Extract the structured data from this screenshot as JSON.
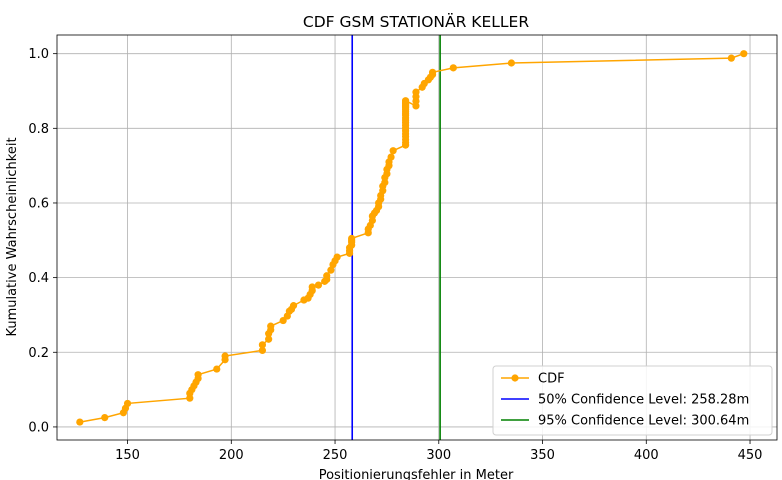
{
  "chart_data": {
    "type": "line",
    "title": "CDF GSM STATIONÄR KELLER",
    "xlabel": "Positionierungsfehler in Meter",
    "ylabel": "Kumulative Wahrscheinlichkeit",
    "xlim": [
      116,
      463
    ],
    "ylim": [
      -0.035,
      1.05
    ],
    "xticks": [
      150,
      200,
      250,
      300,
      350,
      400,
      450
    ],
    "yticks": [
      0.0,
      0.2,
      0.4,
      0.6,
      0.8,
      1.0
    ],
    "ytick_labels": [
      "0.0",
      "0.2",
      "0.4",
      "0.6",
      "0.8",
      "1.0"
    ],
    "grid": true,
    "legend_position": "lower-right",
    "series": [
      {
        "name": "CDF",
        "color": "#ffa500",
        "marker": "circle",
        "x": [
          127,
          139,
          148,
          149,
          150,
          180,
          180,
          181,
          182,
          183,
          184,
          184,
          193,
          197,
          197,
          215,
          215,
          218,
          218,
          219,
          219,
          225,
          227,
          228,
          229,
          230,
          235,
          237,
          238,
          239,
          239,
          242,
          245,
          246,
          246,
          248,
          249,
          250,
          251,
          257,
          257,
          257,
          258,
          258,
          258,
          258,
          266,
          266,
          267,
          268,
          268,
          269,
          270,
          271,
          271,
          272,
          272,
          273,
          273,
          274,
          274,
          275,
          275,
          276,
          276,
          277,
          278,
          284,
          284,
          284,
          284,
          284,
          284,
          284,
          284,
          284,
          284,
          284,
          284,
          284,
          284,
          284,
          284,
          284,
          284,
          284,
          284,
          284,
          289,
          289,
          289,
          289,
          292,
          293,
          295,
          296,
          297,
          297,
          307,
          335,
          441,
          447
        ],
        "y": [
          0.013,
          0.025,
          0.038,
          0.05,
          0.063,
          0.077,
          0.09,
          0.1,
          0.11,
          0.12,
          0.13,
          0.14,
          0.155,
          0.18,
          0.19,
          0.205,
          0.22,
          0.235,
          0.25,
          0.26,
          0.27,
          0.285,
          0.297,
          0.31,
          0.315,
          0.325,
          0.34,
          0.345,
          0.355,
          0.365,
          0.375,
          0.38,
          0.39,
          0.395,
          0.405,
          0.42,
          0.435,
          0.445,
          0.455,
          0.465,
          0.472,
          0.48,
          0.487,
          0.495,
          0.5,
          0.505,
          0.52,
          0.53,
          0.54,
          0.553,
          0.565,
          0.573,
          0.58,
          0.59,
          0.6,
          0.61,
          0.62,
          0.633,
          0.645,
          0.655,
          0.668,
          0.678,
          0.69,
          0.7,
          0.71,
          0.723,
          0.74,
          0.755,
          0.762,
          0.77,
          0.778,
          0.785,
          0.793,
          0.8,
          0.808,
          0.815,
          0.822,
          0.828,
          0.835,
          0.84,
          0.845,
          0.85,
          0.855,
          0.858,
          0.862,
          0.866,
          0.87,
          0.874,
          0.86,
          0.873,
          0.885,
          0.897,
          0.91,
          0.92,
          0.93,
          0.937,
          0.944,
          0.95,
          0.962,
          0.975,
          0.988,
          1.0
        ]
      },
      {
        "name": "50% Confidence Level: 258.28m",
        "color": "#0000ff",
        "type": "vline",
        "x": 258.28
      },
      {
        "name": "95% Confidence Level: 300.64m",
        "color": "#008000",
        "type": "vline",
        "x": 300.64
      }
    ]
  }
}
